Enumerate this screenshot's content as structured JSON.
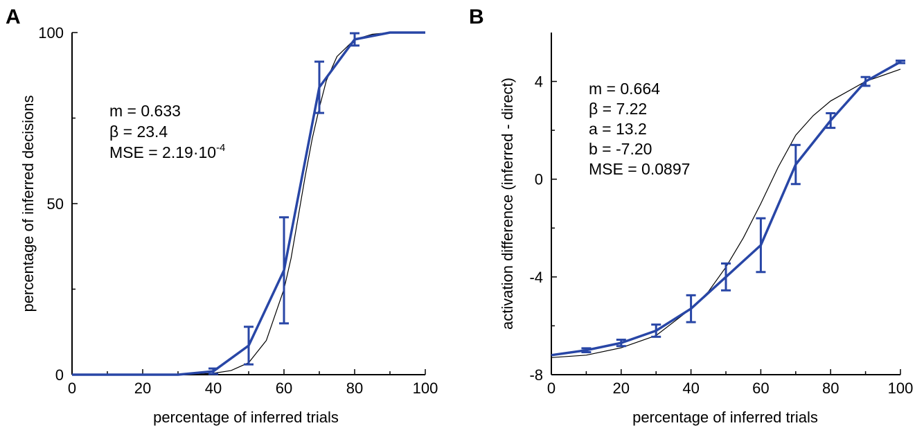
{
  "colors": {
    "series": "#2846a6",
    "fit": "#000000",
    "axis": "#000000"
  },
  "chart_data": [
    {
      "panel": "A",
      "type": "line",
      "xlabel": "percentage of inferred trials",
      "ylabel": "percentage of inferred decisions",
      "xlim": [
        0,
        100
      ],
      "ylim": [
        0,
        100
      ],
      "xticks": [
        0,
        20,
        40,
        60,
        80,
        100
      ],
      "yticks": [
        0,
        50,
        100
      ],
      "grid": false,
      "annotation": [
        "m = 0.633",
        "β = 23.4",
        "MSE = 2.19·10",
        "-4"
      ],
      "series": [
        {
          "x": [
            0,
            10,
            20,
            30,
            40,
            50,
            60,
            70,
            80,
            90,
            100
          ],
          "y": [
            0,
            0,
            0,
            0,
            1,
            8.5,
            30.5,
            84,
            98,
            100,
            100
          ],
          "err": [
            0,
            0,
            0,
            0,
            0.8,
            5.5,
            15.5,
            7.5,
            1.8,
            0,
            0
          ]
        },
        {
          "x": [
            30,
            35,
            40,
            45,
            50,
            55,
            60,
            62,
            64,
            66,
            68,
            70,
            72,
            75,
            80,
            85,
            90,
            100
          ],
          "y": [
            0,
            0.1,
            0.4,
            1.2,
            3.5,
            10,
            25,
            34,
            46,
            58,
            69,
            78,
            86,
            93,
            98,
            99.5,
            100,
            100
          ]
        }
      ]
    },
    {
      "panel": "B",
      "type": "line",
      "xlabel": "percentage of inferred trials",
      "ylabel": "activation difference (inferred - direct)",
      "xlim": [
        0,
        100
      ],
      "ylim": [
        -8,
        6
      ],
      "xticks": [
        0,
        20,
        40,
        60,
        80,
        100
      ],
      "yticks": [
        -8,
        -4,
        0,
        4
      ],
      "grid": false,
      "annotation": [
        "m = 0.664",
        "β = 7.22",
        "a = 13.2",
        "b = -7.20",
        "MSE = 0.0897"
      ],
      "series": [
        {
          "x": [
            0,
            10,
            20,
            30,
            40,
            50,
            60,
            70,
            80,
            90,
            100
          ],
          "y": [
            -7.2,
            -7.0,
            -6.7,
            -6.2,
            -5.3,
            -4.0,
            -2.7,
            0.6,
            2.4,
            4.0,
            4.8
          ],
          "err": [
            0,
            0.08,
            0.13,
            0.25,
            0.55,
            0.55,
            1.1,
            0.8,
            0.3,
            0.18,
            0.05
          ]
        },
        {
          "x": [
            0,
            10,
            20,
            30,
            40,
            45,
            50,
            55,
            60,
            65,
            70,
            75,
            80,
            90,
            100
          ],
          "y": [
            -7.3,
            -7.2,
            -6.9,
            -6.4,
            -5.3,
            -4.6,
            -3.6,
            -2.4,
            -1.0,
            0.5,
            1.8,
            2.6,
            3.2,
            4.0,
            4.5
          ]
        }
      ]
    }
  ]
}
